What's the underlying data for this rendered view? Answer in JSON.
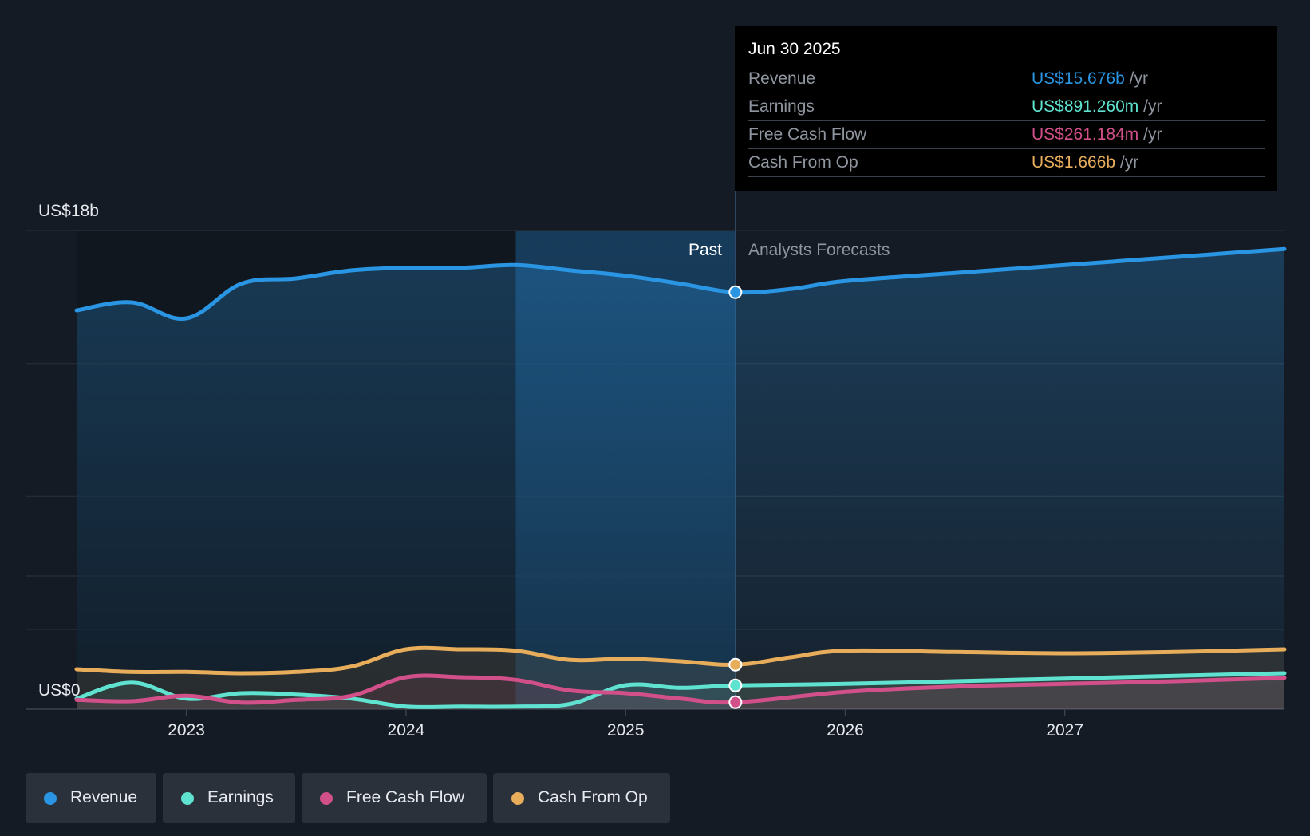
{
  "chart_data": {
    "type": "line",
    "y_unit_labels": {
      "top": "US$18b",
      "bottom": "US$0"
    },
    "ylim": [
      0,
      18
    ],
    "xlim": [
      2022.5,
      2028.0
    ],
    "x_ticks": [
      {
        "value": 2023.0,
        "label": "2023"
      },
      {
        "value": 2024.0,
        "label": "2024"
      },
      {
        "value": 2025.0,
        "label": "2025"
      },
      {
        "value": 2026.0,
        "label": "2026"
      },
      {
        "value": 2027.0,
        "label": "2027"
      }
    ],
    "past_label": "Past",
    "forecast_label": "Analysts Forecasts",
    "past_end_x": 2025.5,
    "shaded_start_x": 2024.5,
    "series": [
      {
        "name": "Revenue",
        "color": "#2a95e2",
        "x": [
          2022.5,
          2022.75,
          2023.0,
          2023.25,
          2023.5,
          2023.75,
          2024.0,
          2024.25,
          2024.5,
          2024.75,
          2025.0,
          2025.25,
          2025.5,
          2025.75,
          2026.0,
          2026.5,
          2027.0,
          2027.5,
          2028.0
        ],
        "y": [
          15.0,
          15.3,
          14.7,
          16.0,
          16.2,
          16.5,
          16.6,
          16.6,
          16.7,
          16.5,
          16.3,
          16.0,
          15.68,
          15.8,
          16.1,
          16.4,
          16.7,
          17.0,
          17.3
        ]
      },
      {
        "name": "Earnings",
        "color": "#5fe3d0",
        "x": [
          2022.5,
          2022.75,
          2023.0,
          2023.25,
          2023.5,
          2023.75,
          2024.0,
          2024.25,
          2024.5,
          2024.75,
          2025.0,
          2025.25,
          2025.5,
          2026.0,
          2026.5,
          2027.0,
          2027.5,
          2028.0
        ],
        "y": [
          0.4,
          1.0,
          0.4,
          0.6,
          0.55,
          0.4,
          0.1,
          0.1,
          0.1,
          0.2,
          0.9,
          0.8,
          0.89,
          0.95,
          1.05,
          1.15,
          1.25,
          1.35
        ]
      },
      {
        "name": "Free Cash Flow",
        "color": "#d2508a",
        "x": [
          2022.5,
          2022.75,
          2023.0,
          2023.25,
          2023.5,
          2023.75,
          2024.0,
          2024.25,
          2024.5,
          2024.75,
          2025.0,
          2025.25,
          2025.5,
          2026.0,
          2026.5,
          2027.0,
          2027.5,
          2028.0
        ],
        "y": [
          0.35,
          0.3,
          0.5,
          0.25,
          0.35,
          0.5,
          1.2,
          1.2,
          1.1,
          0.7,
          0.6,
          0.4,
          0.26,
          0.65,
          0.85,
          0.95,
          1.05,
          1.18
        ]
      },
      {
        "name": "Cash From Op",
        "color": "#e8ad5b",
        "x": [
          2022.5,
          2022.75,
          2023.0,
          2023.25,
          2023.5,
          2023.75,
          2024.0,
          2024.25,
          2024.5,
          2024.75,
          2025.0,
          2025.25,
          2025.5,
          2025.75,
          2026.0,
          2026.5,
          2027.0,
          2027.5,
          2028.0
        ],
        "y": [
          1.5,
          1.4,
          1.4,
          1.35,
          1.4,
          1.6,
          2.25,
          2.25,
          2.2,
          1.85,
          1.9,
          1.8,
          1.67,
          1.95,
          2.2,
          2.15,
          2.1,
          2.15,
          2.25
        ]
      }
    ],
    "highlight_x": 2025.5
  },
  "tooltip": {
    "date": "Jun 30 2025",
    "unit": "/yr",
    "rows": [
      {
        "label": "Revenue",
        "value": "US$15.676b",
        "color": "#2a95e2"
      },
      {
        "label": "Earnings",
        "value": "US$891.260m",
        "color": "#5fe3d0"
      },
      {
        "label": "Free Cash Flow",
        "value": "US$261.184m",
        "color": "#d2508a"
      },
      {
        "label": "Cash From Op",
        "value": "US$1.666b",
        "color": "#e8ad5b"
      }
    ]
  },
  "legend": {
    "items": [
      {
        "label": "Revenue",
        "color": "#2a95e2"
      },
      {
        "label": "Earnings",
        "color": "#5fe3d0"
      },
      {
        "label": "Free Cash Flow",
        "color": "#d2508a"
      },
      {
        "label": "Cash From Op",
        "color": "#e8ad5b"
      }
    ]
  },
  "colors": {
    "background": "#151b24",
    "grid": "#2b333e",
    "axis_text": "#e6e9ee",
    "muted_text": "#8f969f"
  }
}
